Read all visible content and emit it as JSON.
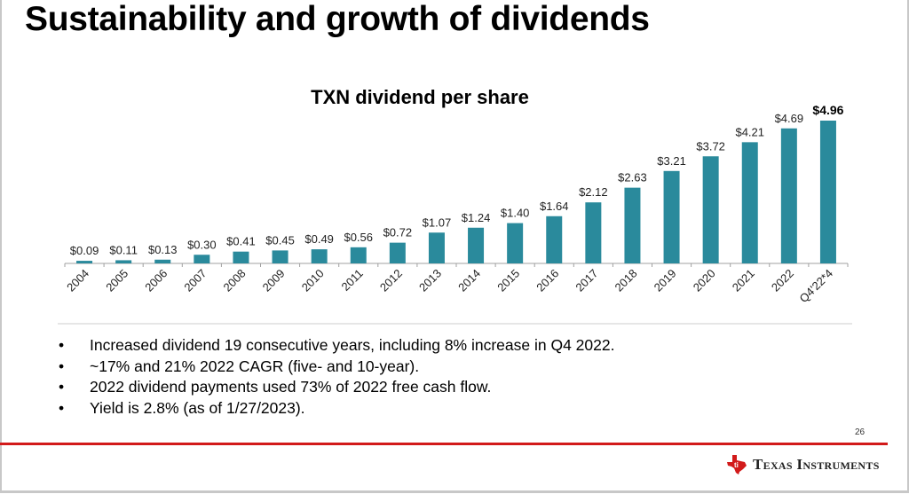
{
  "slide": {
    "title": "Sustainability and growth of dividends",
    "page_number": "26",
    "brand": "Texas Instruments",
    "accent_color": "#d21a1a",
    "bar_color": "#2a8a9c"
  },
  "bullets": [
    "Increased dividend 19 consecutive years, including 8% increase in Q4 2022.",
    "~17% and 21% 2022 CAGR (five- and 10-year).",
    "2022 dividend payments used 73% of 2022 free cash flow.",
    "Yield is 2.8% (as of 1/27/2023)."
  ],
  "bullet_glyph": "•",
  "chart_data": {
    "type": "bar",
    "title": "TXN dividend per share",
    "xlabel": "",
    "ylabel": "",
    "categories": [
      "2004",
      "2005",
      "2006",
      "2007",
      "2008",
      "2009",
      "2010",
      "2011",
      "2012",
      "2013",
      "2014",
      "2015",
      "2016",
      "2017",
      "2018",
      "2019",
      "2020",
      "2021",
      "2022",
      "Q4'22*4"
    ],
    "values": [
      0.09,
      0.11,
      0.13,
      0.3,
      0.41,
      0.45,
      0.49,
      0.56,
      0.72,
      1.07,
      1.24,
      1.4,
      1.64,
      2.12,
      2.63,
      3.21,
      3.72,
      4.21,
      4.69,
      4.96
    ],
    "data_labels": [
      "$0.09",
      "$0.11",
      "$0.13",
      "$0.30",
      "$0.41",
      "$0.45",
      "$0.49",
      "$0.56",
      "$0.72",
      "$1.07",
      "$1.24",
      "$1.40",
      "$1.64",
      "$2.12",
      "$2.63",
      "$3.21",
      "$3.72",
      "$4.21",
      "$4.69",
      "$4.96"
    ],
    "highlight_last_label": true,
    "ylim": [
      0,
      4.96
    ],
    "grid": false,
    "legend": "none",
    "y_axis_visible": false
  }
}
